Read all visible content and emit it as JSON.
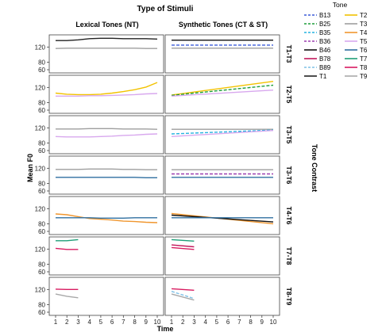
{
  "chart_data": {
    "type": "line",
    "title": "Type of Stimuli",
    "xlabel": "Time",
    "ylabel": "Mean F0",
    "facet_row_title": "Tone Contrast",
    "x": [
      1,
      2,
      3,
      4,
      5,
      6,
      7,
      8,
      9,
      10
    ],
    "ylim": [
      60,
      150
    ],
    "yticks": [
      60,
      80,
      100,
      120,
      140
    ],
    "grid": false,
    "legend": {
      "title": "Tone",
      "placement": "top-right",
      "entries": [
        {
          "name": "B13",
          "color": "#3b5bd9",
          "dash": true
        },
        {
          "name": "T2",
          "color": "#f2c200",
          "dash": false
        },
        {
          "name": "B25",
          "color": "#1f9e3a",
          "dash": true
        },
        {
          "name": "T3",
          "color": "#9e9e9e",
          "dash": false
        },
        {
          "name": "B35",
          "color": "#24b3e0",
          "dash": true
        },
        {
          "name": "T4",
          "color": "#f0962e",
          "dash": false
        },
        {
          "name": "B36",
          "color": "#9c3fb0",
          "dash": true
        },
        {
          "name": "T5",
          "color": "#d8a8ee",
          "dash": false
        },
        {
          "name": "B46",
          "color": "#111111",
          "dash": false
        },
        {
          "name": "T6",
          "color": "#2f6fa0",
          "dash": false
        },
        {
          "name": "B78",
          "color": "#c2185b",
          "dash": false
        },
        {
          "name": "T7",
          "color": "#1e9e77",
          "dash": false
        },
        {
          "name": "B89",
          "color": "#7ec0e6",
          "dash": true
        },
        {
          "name": "T8",
          "color": "#d81b60",
          "dash": false
        },
        {
          "name": "T1",
          "color": "#222222",
          "dash": false
        },
        {
          "name": "T9",
          "color": "#a8a8a8",
          "dash": false
        }
      ]
    },
    "columns": [
      "Lexical Tones (NT)",
      "Synthetic Tones (CT & ST)"
    ],
    "rows": [
      {
        "label": "T1-T3",
        "panels": [
          [
            {
              "name": "T1",
              "color": "#222222",
              "dash": false,
              "x": [
                1,
                2,
                3,
                4,
                5,
                6,
                7,
                8,
                9,
                10
              ],
              "y": [
                137,
                137,
                139,
                142,
                143,
                143,
                142,
                142,
                142,
                141
              ]
            },
            {
              "name": "T3",
              "color": "#9e9e9e",
              "dash": false,
              "x": [
                1,
                2,
                3,
                4,
                5,
                6,
                7,
                8,
                9,
                10
              ],
              "y": [
                116,
                117,
                117,
                117,
                117,
                117,
                117,
                117,
                116,
                116
              ]
            }
          ],
          [
            {
              "name": "B46",
              "color": "#111111",
              "dash": false,
              "x": [
                1,
                10
              ],
              "y": [
                138,
                138
              ]
            },
            {
              "name": "B13",
              "color": "#3b5bd9",
              "dash": true,
              "x": [
                1,
                10
              ],
              "y": [
                125,
                125
              ]
            },
            {
              "name": "T3",
              "color": "#9e9e9e",
              "dash": false,
              "x": [
                1,
                10
              ],
              "y": [
                117,
                117
              ]
            }
          ]
        ]
      },
      {
        "label": "T2-T5",
        "panels": [
          [
            {
              "name": "T2",
              "color": "#f2c200",
              "dash": false,
              "x": [
                1,
                2,
                3,
                4,
                5,
                6,
                7,
                8,
                9,
                10
              ],
              "y": [
                105,
                102,
                101,
                101,
                102,
                105,
                109,
                114,
                121,
                133
              ]
            },
            {
              "name": "T5",
              "color": "#d8a8ee",
              "dash": false,
              "x": [
                1,
                2,
                3,
                4,
                5,
                6,
                7,
                8,
                9,
                10
              ],
              "y": [
                97,
                97,
                97,
                98,
                98,
                99,
                100,
                101,
                103,
                104
              ]
            }
          ],
          [
            {
              "name": "T2",
              "color": "#f2c200",
              "dash": false,
              "x": [
                1,
                10
              ],
              "y": [
                100,
                136
              ]
            },
            {
              "name": "B25",
              "color": "#1f9e3a",
              "dash": true,
              "x": [
                1,
                10
              ],
              "y": [
                99,
                126
              ]
            },
            {
              "name": "T5",
              "color": "#d8a8ee",
              "dash": false,
              "x": [
                1,
                10
              ],
              "y": [
                97,
                113
              ]
            }
          ]
        ]
      },
      {
        "label": "T3-T5",
        "panels": [
          [
            {
              "name": "T3",
              "color": "#9e9e9e",
              "dash": false,
              "x": [
                1,
                2,
                3,
                4,
                5,
                6,
                7,
                8,
                9,
                10
              ],
              "y": [
                117,
                117,
                117,
                118,
                118,
                118,
                117,
                117,
                117,
                116
              ]
            },
            {
              "name": "T5",
              "color": "#d8a8ee",
              "dash": false,
              "x": [
                1,
                2,
                3,
                4,
                5,
                6,
                7,
                8,
                9,
                10
              ],
              "y": [
                97,
                96,
                96,
                96,
                97,
                98,
                100,
                101,
                103,
                104
              ]
            }
          ],
          [
            {
              "name": "T3",
              "color": "#9e9e9e",
              "dash": false,
              "x": [
                1,
                10
              ],
              "y": [
                116,
                116
              ]
            },
            {
              "name": "B35",
              "color": "#24b3e0",
              "dash": true,
              "x": [
                1,
                10
              ],
              "y": [
                104,
                114
              ]
            },
            {
              "name": "T5",
              "color": "#d8a8ee",
              "dash": false,
              "x": [
                1,
                10
              ],
              "y": [
                97,
                113
              ]
            }
          ]
        ]
      },
      {
        "label": "T3-T6",
        "panels": [
          [
            {
              "name": "T3",
              "color": "#9e9e9e",
              "dash": false,
              "x": [
                1,
                2,
                3,
                4,
                5,
                6,
                7,
                8,
                9,
                10
              ],
              "y": [
                117,
                117,
                117,
                118,
                118,
                118,
                117,
                117,
                116,
                116
              ]
            },
            {
              "name": "T6",
              "color": "#2f6fa0",
              "dash": false,
              "x": [
                1,
                2,
                3,
                4,
                5,
                6,
                7,
                8,
                9,
                10
              ],
              "y": [
                96,
                96,
                96,
                96,
                96,
                96,
                96,
                96,
                95,
                95
              ]
            }
          ],
          [
            {
              "name": "T3",
              "color": "#9e9e9e",
              "dash": false,
              "x": [
                1,
                10
              ],
              "y": [
                116,
                116
              ]
            },
            {
              "name": "B36",
              "color": "#9c3fb0",
              "dash": true,
              "x": [
                1,
                10
              ],
              "y": [
                105,
                105
              ]
            },
            {
              "name": "T6",
              "color": "#2f6fa0",
              "dash": false,
              "x": [
                1,
                10
              ],
              "y": [
                96,
                96
              ]
            }
          ]
        ]
      },
      {
        "label": "T4-T6",
        "panels": [
          [
            {
              "name": "T4",
              "color": "#f0962e",
              "dash": false,
              "x": [
                1,
                2,
                3,
                4,
                5,
                6,
                7,
                8,
                9,
                10
              ],
              "y": [
                106,
                104,
                99,
                94,
                92,
                90,
                87,
                86,
                84,
                83
              ]
            },
            {
              "name": "T6",
              "color": "#2f6fa0",
              "dash": false,
              "x": [
                1,
                2,
                3,
                4,
                5,
                6,
                7,
                8,
                9,
                10
              ],
              "y": [
                96,
                96,
                96,
                96,
                95,
                95,
                95,
                96,
                96,
                96
              ]
            }
          ],
          [
            {
              "name": "T4",
              "color": "#f0962e",
              "dash": false,
              "x": [
                1,
                10
              ],
              "y": [
                107,
                80
              ]
            },
            {
              "name": "B46",
              "color": "#111111",
              "dash": false,
              "x": [
                1,
                10
              ],
              "y": [
                103,
                85
              ]
            },
            {
              "name": "T6",
              "color": "#2f6fa0",
              "dash": false,
              "x": [
                1,
                10
              ],
              "y": [
                96,
                96
              ]
            }
          ]
        ]
      },
      {
        "label": "T7-T8",
        "panels": [
          [
            {
              "name": "T7",
              "color": "#1e9e77",
              "dash": false,
              "x": [
                1,
                2,
                3
              ],
              "y": [
                142,
                142,
                145
              ]
            },
            {
              "name": "T8",
              "color": "#d81b60",
              "dash": false,
              "x": [
                1,
                2,
                3
              ],
              "y": [
                122,
                119,
                119
              ]
            }
          ],
          [
            {
              "name": "T7",
              "color": "#1e9e77",
              "dash": false,
              "x": [
                1,
                3
              ],
              "y": [
                145,
                141
              ]
            },
            {
              "name": "B78",
              "color": "#c2185b",
              "dash": false,
              "x": [
                1,
                3
              ],
              "y": [
                131,
                126
              ]
            },
            {
              "name": "T8",
              "color": "#d81b60",
              "dash": false,
              "x": [
                1,
                3
              ],
              "y": [
                124,
                119
              ]
            }
          ]
        ]
      },
      {
        "label": "T8-T9",
        "panels": [
          [
            {
              "name": "T8",
              "color": "#d81b60",
              "dash": false,
              "x": [
                1,
                2,
                3
              ],
              "y": [
                121,
                120,
                120
              ]
            },
            {
              "name": "T9",
              "color": "#a8a8a8",
              "dash": false,
              "x": [
                1,
                2,
                3
              ],
              "y": [
                108,
                102,
                98
              ]
            }
          ],
          [
            {
              "name": "T8",
              "color": "#d81b60",
              "dash": false,
              "x": [
                1,
                3
              ],
              "y": [
                122,
                118
              ]
            },
            {
              "name": "B89",
              "color": "#7ec0e6",
              "dash": true,
              "x": [
                1,
                3
              ],
              "y": [
                115,
                96
              ]
            },
            {
              "name": "T9",
              "color": "#a8a8a8",
              "dash": false,
              "x": [
                1,
                3
              ],
              "y": [
                108,
                92
              ]
            }
          ]
        ]
      }
    ]
  }
}
